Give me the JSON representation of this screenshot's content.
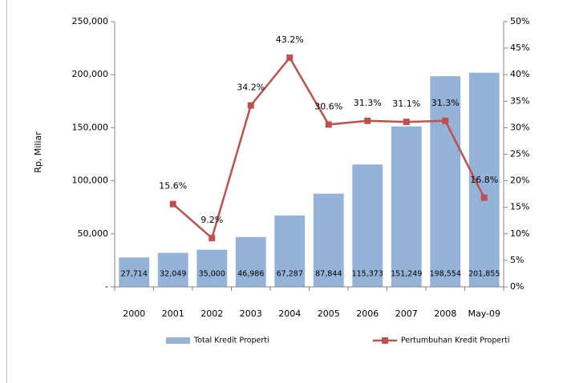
{
  "chart_data": {
    "type": "combo",
    "y_label": "Rp, Miliar",
    "categories": [
      "2000",
      "2001",
      "2002",
      "2003",
      "2004",
      "2005",
      "2006",
      "2007",
      "2008",
      "May-09"
    ],
    "series": [
      {
        "name": "Total Kredit Properti",
        "type": "bar",
        "color": "#95b3d7",
        "values": [
          27714,
          32049,
          35000,
          46986,
          67287,
          87844,
          115373,
          151249,
          198554,
          201855
        ],
        "value_labels": [
          "27,714",
          "32,049",
          "35,000",
          "46,986",
          "67,287",
          "87,844",
          "115,373",
          "151,249",
          "198,554",
          "201,855"
        ]
      },
      {
        "name": "Pertumbuhan Kredit Properti",
        "type": "line",
        "axis": "y2",
        "color": "#c0504d",
        "values": [
          null,
          15.6,
          9.2,
          34.2,
          43.2,
          30.6,
          31.3,
          31.1,
          31.3,
          16.8
        ],
        "value_labels": [
          null,
          "15.6%",
          "9.2%",
          "34.2%",
          "43.2%",
          "30.6%",
          "31.3%",
          "31.1%",
          "31.3%",
          "16.8%"
        ]
      }
    ],
    "ylim": [
      0,
      250000
    ],
    "yticks": [
      {
        "value": 0,
        "label": "-"
      },
      {
        "value": 50000,
        "label": "50,000"
      },
      {
        "value": 100000,
        "label": "100,000"
      },
      {
        "value": 150000,
        "label": "150,000"
      },
      {
        "value": 200000,
        "label": "200,000"
      },
      {
        "value": 250000,
        "label": "250,000"
      }
    ],
    "y2lim": [
      0,
      50
    ],
    "y2ticks": [
      {
        "value": 0,
        "label": "0%"
      },
      {
        "value": 5,
        "label": "5%"
      },
      {
        "value": 10,
        "label": "10%"
      },
      {
        "value": 15,
        "label": "15%"
      },
      {
        "value": 20,
        "label": "20%"
      },
      {
        "value": 25,
        "label": "25%"
      },
      {
        "value": 30,
        "label": "30%"
      },
      {
        "value": 35,
        "label": "35%"
      },
      {
        "value": 40,
        "label": "40%"
      },
      {
        "value": 45,
        "label": "45%"
      },
      {
        "value": 50,
        "label": "50%"
      }
    ],
    "grid": false
  }
}
